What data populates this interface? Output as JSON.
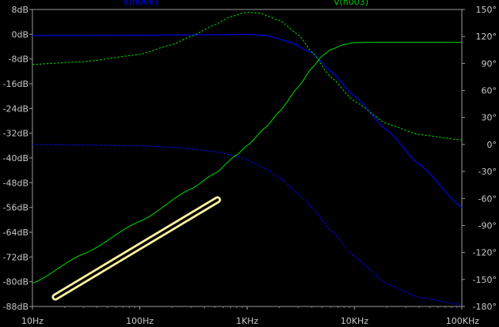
{
  "chart_data": {
    "type": "line",
    "title": "",
    "x_scale": "log",
    "xlim_hz": [
      10,
      100000
    ],
    "x_ticks": [
      {
        "value": 10,
        "label": "10Hz"
      },
      {
        "value": 100,
        "label": "100Hz"
      },
      {
        "value": 1000,
        "label": "1KHz"
      },
      {
        "value": 10000,
        "label": "10KHz"
      },
      {
        "value": 100000,
        "label": "100KHz"
      }
    ],
    "y_left": {
      "unit": "dB",
      "lim": [
        -88,
        8
      ],
      "ticks": [
        {
          "value": 8,
          "label": "8dB"
        },
        {
          "value": 0,
          "label": "0dB"
        },
        {
          "value": -8,
          "label": "-8dB"
        },
        {
          "value": -16,
          "label": "-16dB"
        },
        {
          "value": -24,
          "label": "-24dB"
        },
        {
          "value": -32,
          "label": "-32dB"
        },
        {
          "value": -40,
          "label": "-40dB"
        },
        {
          "value": -48,
          "label": "-48dB"
        },
        {
          "value": -56,
          "label": "-56dB"
        },
        {
          "value": -64,
          "label": "-64dB"
        },
        {
          "value": -72,
          "label": "-72dB"
        },
        {
          "value": -80,
          "label": "-80dB"
        },
        {
          "value": -88,
          "label": "-88dB"
        }
      ]
    },
    "y_right": {
      "unit": "degrees",
      "lim": [
        -180,
        150
      ],
      "ticks": [
        {
          "value": 150,
          "label": "150°"
        },
        {
          "value": 120,
          "label": "120°"
        },
        {
          "value": 90,
          "label": "90°"
        },
        {
          "value": 60,
          "label": "60°"
        },
        {
          "value": 30,
          "label": "30°"
        },
        {
          "value": 0,
          "label": "0°"
        },
        {
          "value": -30,
          "label": "-30°"
        },
        {
          "value": -60,
          "label": "-60°"
        },
        {
          "value": -90,
          "label": "-90°"
        },
        {
          "value": -120,
          "label": "-120°"
        },
        {
          "value": -150,
          "label": "-150°"
        },
        {
          "value": -180,
          "label": "-180°"
        }
      ]
    },
    "trace_labels": [
      {
        "text": "V(n006)",
        "color": "#0000ff",
        "at_freq_hz": 120
      },
      {
        "text": "V(n003)",
        "color": "#00cc00",
        "at_freq_hz": 11000
      }
    ],
    "series": [
      {
        "color": "#0000ff",
        "quantity": "magnitude",
        "axis": "left",
        "style": "solid",
        "points": [
          [
            10,
            -0.4
          ],
          [
            30,
            -0.4
          ],
          [
            100,
            -0.3
          ],
          [
            300,
            -0.2
          ],
          [
            700,
            -0.1
          ],
          [
            1000,
            0.0
          ],
          [
            1500,
            -0.4
          ],
          [
            2500,
            -2.5
          ],
          [
            4000,
            -6.0
          ],
          [
            6000,
            -12.0
          ],
          [
            10000,
            -20.0
          ],
          [
            20000,
            -31.0
          ],
          [
            40000,
            -42.0
          ],
          [
            100000,
            -56.0
          ]
        ]
      },
      {
        "color": "#0000ff",
        "quantity": "phase",
        "axis": "right",
        "style": "dashed",
        "points": [
          [
            10,
            0
          ],
          [
            30,
            -0.5
          ],
          [
            100,
            -1.5
          ],
          [
            200,
            -3
          ],
          [
            300,
            -5
          ],
          [
            500,
            -8
          ],
          [
            800,
            -13
          ],
          [
            1000,
            -17
          ],
          [
            1500,
            -27
          ],
          [
            2000,
            -37
          ],
          [
            3000,
            -55
          ],
          [
            4000,
            -70
          ],
          [
            6000,
            -95
          ],
          [
            10000,
            -125
          ],
          [
            20000,
            -155
          ],
          [
            40000,
            -170
          ],
          [
            100000,
            -178
          ]
        ]
      },
      {
        "color": "#00cc00",
        "quantity": "magnitude",
        "axis": "left",
        "style": "solid",
        "points": [
          [
            10,
            -80.5
          ],
          [
            30,
            -71
          ],
          [
            100,
            -60.5
          ],
          [
            300,
            -50
          ],
          [
            500,
            -45
          ],
          [
            800,
            -39
          ],
          [
            1000,
            -36
          ],
          [
            1500,
            -30
          ],
          [
            2000,
            -25
          ],
          [
            3000,
            -17
          ],
          [
            4000,
            -11
          ],
          [
            5000,
            -7
          ],
          [
            6000,
            -5
          ],
          [
            8000,
            -3.3
          ],
          [
            10000,
            -2.7
          ],
          [
            15000,
            -2.6
          ],
          [
            100000,
            -2.6
          ]
        ]
      },
      {
        "color": "#00cc00",
        "quantity": "phase",
        "axis": "right",
        "style": "dashed",
        "points": [
          [
            10,
            89
          ],
          [
            30,
            92
          ],
          [
            100,
            100
          ],
          [
            200,
            111
          ],
          [
            300,
            120
          ],
          [
            500,
            133
          ],
          [
            700,
            142
          ],
          [
            1000,
            147
          ],
          [
            1300,
            146
          ],
          [
            2000,
            138
          ],
          [
            3000,
            122
          ],
          [
            4000,
            103
          ],
          [
            6000,
            75
          ],
          [
            10000,
            48
          ],
          [
            20000,
            23
          ],
          [
            40000,
            11
          ],
          [
            100000,
            5
          ]
        ]
      }
    ]
  }
}
